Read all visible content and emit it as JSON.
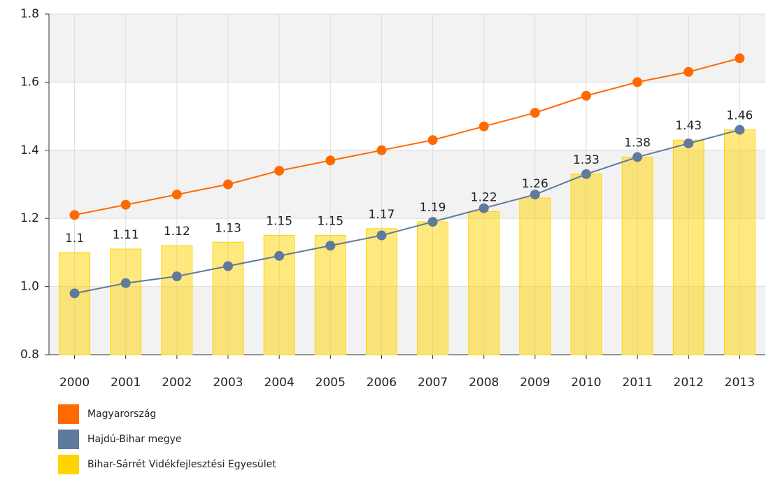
{
  "chart_data": {
    "type": "bar-line",
    "categories": [
      "2000",
      "2001",
      "2002",
      "2003",
      "2004",
      "2005",
      "2006",
      "2007",
      "2008",
      "2009",
      "2010",
      "2011",
      "2012",
      "2013"
    ],
    "series": [
      {
        "name": "Magyarország",
        "color": "#ff6a00",
        "kind": "line",
        "values": [
          1.21,
          1.24,
          1.27,
          1.3,
          1.34,
          1.37,
          1.4,
          1.43,
          1.47,
          1.51,
          1.56,
          1.6,
          1.63,
          1.67
        ]
      },
      {
        "name": "Hajdú-Bihar megye",
        "color": "#5f7a9c",
        "kind": "line",
        "values": [
          0.98,
          1.01,
          1.03,
          1.06,
          1.09,
          1.12,
          1.15,
          1.19,
          1.23,
          1.27,
          1.33,
          1.38,
          1.42,
          1.46
        ]
      },
      {
        "name": "Bihar-Sárrét Vidékfejlesztési Egyesület",
        "color": "#ffd400",
        "kind": "bar",
        "values": [
          1.1,
          1.11,
          1.12,
          1.13,
          1.15,
          1.15,
          1.17,
          1.19,
          1.22,
          1.26,
          1.33,
          1.38,
          1.43,
          1.46
        ]
      }
    ],
    "ylim": [
      0.8,
      1.8
    ],
    "yticks": [
      0.8,
      {
        "value": 1,
        "label": "1.0"
      },
      1.2,
      1.4,
      1.6,
      1.8
    ],
    "grid": true
  }
}
